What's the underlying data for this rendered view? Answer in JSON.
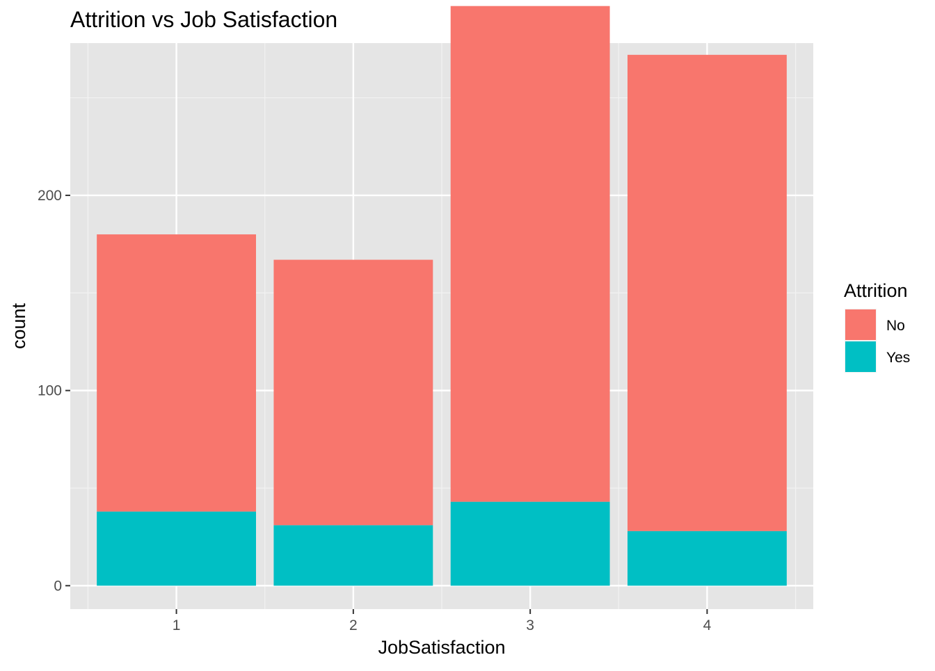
{
  "chart_data": {
    "type": "bar",
    "stacked": true,
    "title": "Attrition vs Job Satisfaction",
    "xlabel": "JobSatisfaction",
    "ylabel": "count",
    "categories": [
      "1",
      "2",
      "3",
      "4"
    ],
    "series": [
      {
        "name": "No",
        "values": [
          142,
          136,
          254,
          244
        ],
        "color": "#F8766D"
      },
      {
        "name": "Yes",
        "values": [
          38,
          31,
          43,
          28
        ],
        "color": "#00BFC4"
      }
    ],
    "ylim": [
      -12,
      278
    ],
    "y_ticks": [
      0,
      100,
      200
    ],
    "legend": {
      "title": "Attrition",
      "position": "right"
    },
    "panel_background": "#E5E5E5",
    "grid": true
  }
}
